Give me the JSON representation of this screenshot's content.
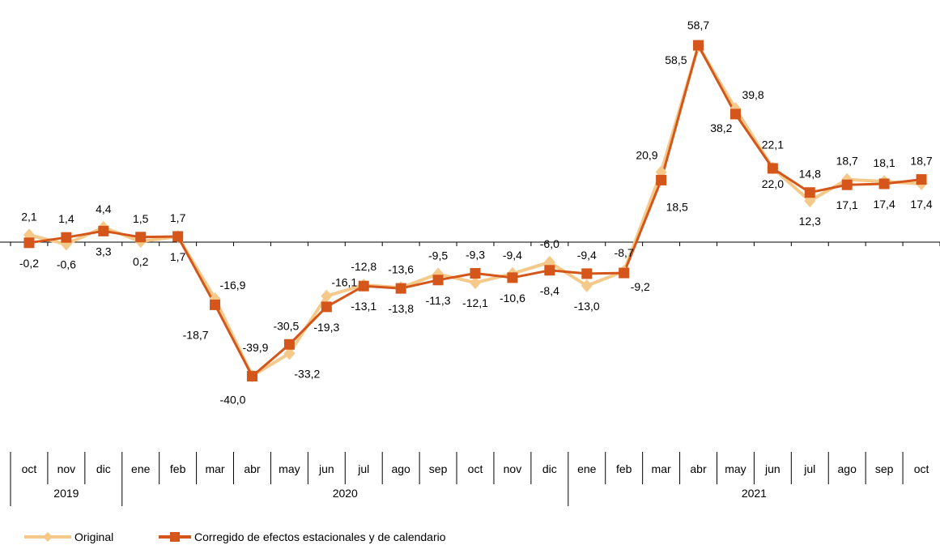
{
  "chart_data": {
    "type": "line",
    "categories": [
      "oct",
      "nov",
      "dic",
      "ene",
      "feb",
      "mar",
      "abr",
      "may",
      "jun",
      "jul",
      "ago",
      "sep",
      "oct",
      "nov",
      "dic",
      "ene",
      "feb",
      "mar",
      "abr",
      "may",
      "jun",
      "jul",
      "ago",
      "sep",
      "oct"
    ],
    "years": [
      {
        "label": "2019",
        "start": 0,
        "end": 2
      },
      {
        "label": "2020",
        "start": 3,
        "end": 14
      },
      {
        "label": "2021",
        "start": 15,
        "end": 24
      }
    ],
    "series": [
      {
        "name": "Original",
        "color": "#f5c98a",
        "marker": "diamond",
        "values": [
          2.1,
          -0.6,
          4.4,
          0.2,
          1.7,
          -16.9,
          -39.9,
          -33.2,
          -16.1,
          -12.8,
          -13.6,
          -9.5,
          -12.1,
          -9.4,
          -6.0,
          -13.0,
          -8.7,
          20.9,
          58.5,
          39.8,
          22.1,
          12.3,
          18.7,
          18.1,
          17.4
        ],
        "labels": [
          "2,1",
          "-0,6",
          "4,4",
          "0,2",
          "1,7",
          "-16,9",
          "-39,9",
          "-33,2",
          "-16,1",
          "-12,8",
          "-13,6",
          "-9,5",
          "-12,1",
          "-9,4",
          "-6,0",
          "-13,0",
          "-8,7",
          "20,9",
          "58,5",
          "39,8",
          "22,1",
          "12,3",
          "18,7",
          "18,1",
          "17,4"
        ]
      },
      {
        "name": "Corregido de efectos estacionales y de calendario",
        "color": "#d4561a",
        "marker": "square",
        "values": [
          -0.2,
          1.4,
          3.3,
          1.5,
          1.7,
          -18.7,
          -40.0,
          -30.5,
          -19.3,
          -13.1,
          -13.8,
          -11.3,
          -9.3,
          -10.6,
          -8.4,
          -9.4,
          -9.2,
          18.5,
          58.7,
          38.2,
          22.0,
          14.8,
          17.1,
          17.4,
          18.7
        ],
        "labels": [
          "-0,2",
          "1,4",
          "3,3",
          "1,5",
          "1,7",
          "-18,7",
          "-40,0",
          "-30,5",
          "-19,3",
          "-13,1",
          "-13,8",
          "-11,3",
          "-9,3",
          "-10,6",
          "-8,4",
          "-9,4",
          "-9,2",
          "18,5",
          "58,7",
          "38,2",
          "22,0",
          "14,8",
          "17,1",
          "17,4",
          "18,7"
        ]
      }
    ],
    "ylim": [
      -45,
      62
    ],
    "grid": false,
    "legend_position": "bottom-left"
  }
}
